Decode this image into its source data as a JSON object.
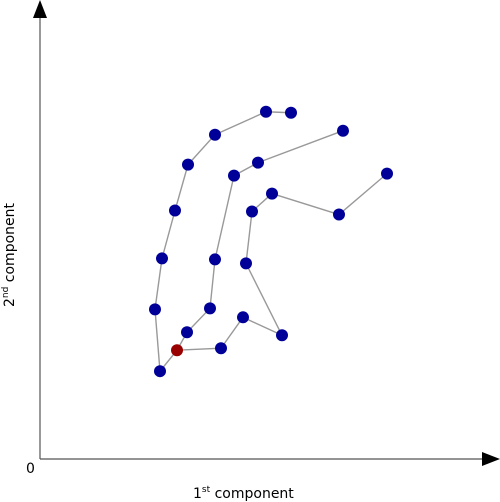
{
  "chart_data": {
    "type": "scatter",
    "title": "",
    "xlabel": {
      "prefix": "1",
      "sup": "st",
      "suffix": " component"
    },
    "ylabel": {
      "prefix": "2",
      "sup": "nd",
      "suffix": " component"
    },
    "origin_label": "0",
    "xlim": [
      0,
      460
    ],
    "ylim": [
      0,
      460
    ],
    "grid": false,
    "axis_color": "#555555",
    "line_color": "#999999",
    "point_color": "#000099",
    "highlight_color": "#990000",
    "origin_point": [
      137,
      109
    ],
    "paths": [
      [
        [
          137,
          109
        ],
        [
          120,
          88
        ],
        [
          115,
          150
        ],
        [
          122,
          201
        ],
        [
          135,
          249
        ],
        [
          148,
          295
        ],
        [
          175,
          325
        ],
        [
          226,
          348
        ],
        [
          251,
          347
        ]
      ],
      [
        [
          137,
          109
        ],
        [
          147,
          127
        ],
        [
          170,
          151
        ],
        [
          175,
          200
        ],
        [
          194,
          284
        ],
        [
          218,
          297
        ],
        [
          303,
          329
        ]
      ],
      [
        [
          137,
          109
        ],
        [
          181,
          111
        ],
        [
          203,
          142
        ],
        [
          242,
          124
        ],
        [
          206,
          196
        ],
        [
          212,
          248
        ],
        [
          232,
          266
        ],
        [
          299,
          245
        ],
        [
          347,
          286
        ]
      ]
    ]
  }
}
